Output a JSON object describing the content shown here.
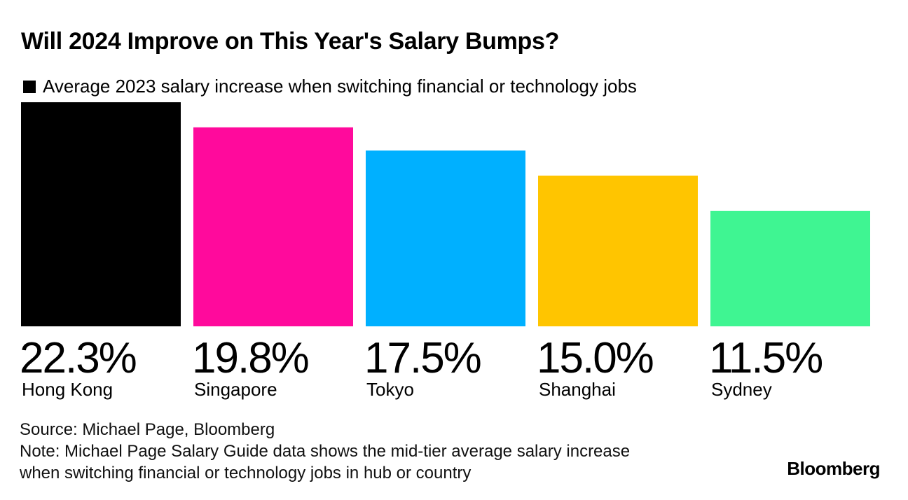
{
  "chart_data": {
    "type": "bar",
    "title": "Will 2024 Improve on This Year's Salary Bumps?",
    "legend": [
      {
        "label": "Average 2023 salary increase when switching financial or technology jobs",
        "color": "#000000"
      }
    ],
    "categories": [
      "Hong Kong",
      "Singapore",
      "Tokyo",
      "Shanghai",
      "Sydney"
    ],
    "values": [
      22.3,
      19.8,
      17.5,
      15.0,
      11.5
    ],
    "value_labels": [
      "22.3%",
      "19.8%",
      "17.5%",
      "15.0%",
      "11.5%"
    ],
    "colors": [
      "#000000",
      "#ff0a9c",
      "#00b0ff",
      "#ffc500",
      "#3ff592"
    ],
    "ylim": [
      0,
      22.3
    ],
    "xlabel": "",
    "ylabel": "",
    "grid": false
  },
  "source": "Source: Michael Page, Bloomberg",
  "note_line1": "Note: Michael Page Salary Guide data shows the mid-tier average salary increase",
  "note_line2": "when switching financial or technology jobs in hub or country",
  "brand": "Bloomberg"
}
